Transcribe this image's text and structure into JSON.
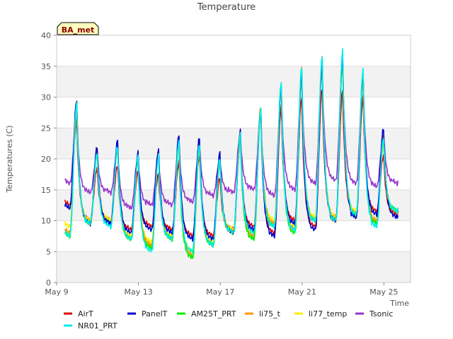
{
  "chart_data": {
    "type": "line",
    "title": "Temperature",
    "xlabel": "Time",
    "ylabel": "Temperatures (C)",
    "badge": "BA_met",
    "xlim": [
      9,
      26.3
    ],
    "ylim": [
      0,
      40
    ],
    "yticks": [
      0,
      5,
      10,
      15,
      20,
      25,
      30,
      35,
      40
    ],
    "xticks": [
      {
        "value": 9,
        "label": "May 9"
      },
      {
        "value": 13,
        "label": "May 13"
      },
      {
        "value": 17,
        "label": "May 17"
      },
      {
        "value": 21,
        "label": "May 21"
      },
      {
        "value": 25,
        "label": "May 25"
      }
    ],
    "grid": true,
    "legend_position": "bottom",
    "x_unit": "day of May",
    "series": [
      {
        "name": "AirT",
        "color": "#dd0000",
        "daily_min": [
          12.5,
          10,
          10,
          8.5,
          9,
          8.5,
          7.5,
          7.5,
          8.5,
          9,
          8,
          10,
          9,
          10.5,
          11,
          11.5,
          11
        ],
        "daily_max": [
          26,
          18.5,
          19,
          18,
          17.5,
          19.5,
          20.5,
          17,
          23,
          27.5,
          28.5,
          30,
          31.5,
          31,
          30,
          20.5,
          19.5
        ]
      },
      {
        "name": "PanelT",
        "color": "#0000cc",
        "daily_min": [
          12,
          9.5,
          9.5,
          8,
          8.5,
          8,
          7,
          7,
          8,
          8.5,
          7.5,
          9.5,
          8.5,
          10,
          10.5,
          11,
          10.5
        ],
        "daily_max": [
          29.5,
          22,
          23,
          21,
          21.5,
          24,
          23.5,
          21,
          24.5,
          28,
          32,
          34,
          35.5,
          37,
          34,
          25,
          24
        ]
      },
      {
        "name": "AM25T_PRT",
        "color": "#00ee00",
        "daily_min": [
          7.5,
          9.5,
          9.5,
          7,
          5.5,
          7,
          4,
          6,
          8,
          7,
          9,
          8,
          10,
          10,
          11,
          9.5,
          11.5
        ],
        "daily_max": [
          29,
          21,
          22,
          20,
          20.5,
          22.5,
          22,
          19.5,
          23.5,
          28,
          32,
          34,
          36,
          36,
          33.5,
          23,
          23
        ]
      },
      {
        "name": "li75_t",
        "color": "#ff9900",
        "daily_min": [
          8,
          9.5,
          9.5,
          7,
          6,
          7,
          4.5,
          6,
          8,
          7.5,
          9.5,
          8.5,
          10,
          10,
          11,
          10,
          11.5
        ],
        "daily_max": [
          29.5,
          21.5,
          22.5,
          20.5,
          21.5,
          23.5,
          22.5,
          19.5,
          24.5,
          28.5,
          32,
          34.5,
          36.5,
          36.5,
          34,
          23.5,
          23
        ]
      },
      {
        "name": "li77_temp",
        "color": "#ffee00",
        "daily_min": [
          9,
          10,
          10,
          7.5,
          6.5,
          7.5,
          5,
          6.5,
          8.5,
          8,
          10,
          9,
          10.5,
          10.5,
          11.5,
          10,
          11.5
        ],
        "daily_max": [
          28,
          21,
          22,
          20,
          20.5,
          22.5,
          22,
          19.5,
          23.5,
          27.5,
          31.5,
          33.5,
          35.5,
          35.5,
          33,
          23,
          22.5
        ]
      },
      {
        "name": "Tsonic",
        "color": "#9933cc",
        "daily_min": [
          16,
          14.5,
          14.5,
          12,
          12.5,
          12.5,
          13,
          14,
          14.5,
          15,
          14,
          15,
          16,
          16.5,
          16,
          15.5,
          16
        ],
        "daily_max": [
          27,
          21,
          21.5,
          20.5,
          20.5,
          22.5,
          22.5,
          20,
          24,
          27,
          31,
          33,
          34.5,
          35,
          33,
          24,
          23
        ]
      },
      {
        "name": "NR01_PRT",
        "color": "#00eeee",
        "daily_min": [
          7.5,
          9.5,
          9,
          7,
          5,
          7,
          5,
          6,
          8,
          8,
          9,
          8.5,
          10,
          10,
          11,
          9,
          11.5
        ],
        "daily_max": [
          29,
          21,
          22,
          20.5,
          20.5,
          23,
          22.5,
          20,
          24,
          28,
          32.5,
          35,
          36.5,
          37.5,
          34.5,
          23.5,
          23
        ]
      }
    ]
  }
}
